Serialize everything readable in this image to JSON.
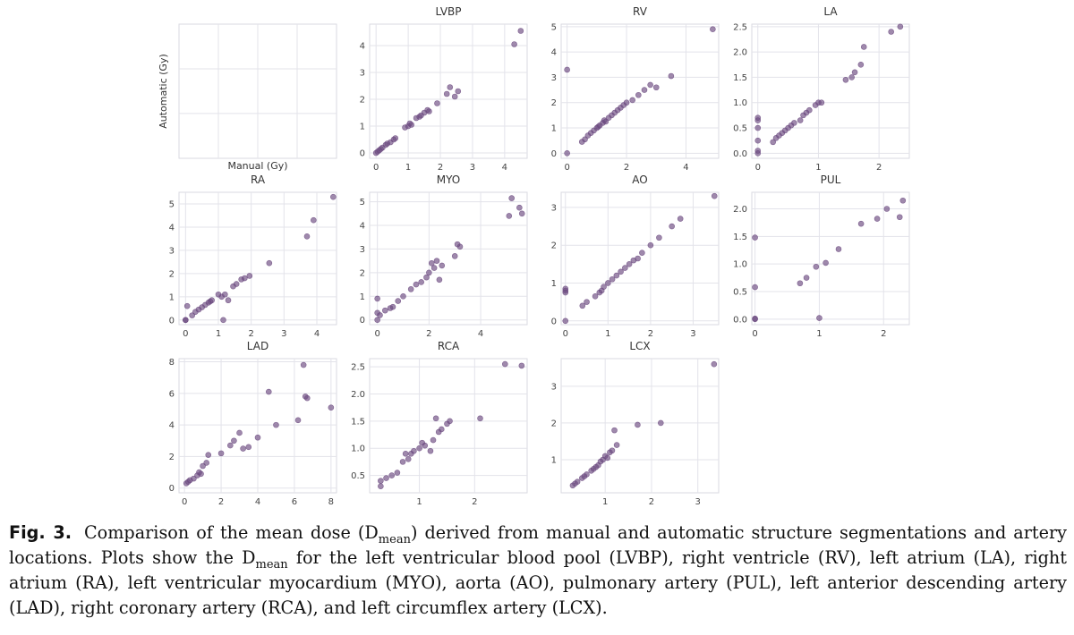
{
  "caption": {
    "label": "Fig. 3.",
    "part1": "Comparison of the mean dose (D",
    "sub1": "mean",
    "part2": ") derived from manual and automatic structure segmentations and artery locations. Plots show the D",
    "sub2": "mean",
    "part3": " for the left ventricular blood pool (LVBP), right ventricle (RV), left atrium (LA), right atrium (RA), left ventricular myocardium (MYO), aorta (AO), pulmonary artery (PUL), left anterior descending artery (LAD), right coronary artery (RCA), and left circumflex artery (LCX)."
  },
  "style": {
    "point_color": "#6b4a80",
    "panel_bg": "#ffffff",
    "grid_color": "#e3e3ea",
    "frame_color": "#d9d9e0"
  },
  "chart_data": [
    {
      "type": "scatter",
      "title": "",
      "xlabel": "Manual (Gy)",
      "ylabel": "Automatic (Gy)",
      "xlim": [
        0,
        1
      ],
      "ylim": [
        0,
        1
      ],
      "xticks": [],
      "yticks": [],
      "x": [],
      "y": []
    },
    {
      "type": "scatter",
      "title": "LVBP",
      "xlabel": "",
      "ylabel": "",
      "xlim": [
        -0.2,
        4.7
      ],
      "ylim": [
        -0.2,
        4.8
      ],
      "xticks": [
        0,
        1,
        2,
        3,
        4
      ],
      "yticks": [
        0,
        1,
        2,
        3,
        4
      ],
      "x": [
        0,
        0.05,
        0.1,
        0.15,
        0.2,
        0.3,
        0.35,
        0.45,
        0.55,
        0.6,
        0.9,
        1.0,
        1.05,
        1.1,
        1.25,
        1.35,
        1.4,
        1.5,
        1.6,
        1.65,
        1.9,
        2.2,
        2.3,
        2.45,
        2.55,
        4.3,
        4.5
      ],
      "y": [
        0,
        0.05,
        0.1,
        0.15,
        0.2,
        0.3,
        0.35,
        0.4,
        0.5,
        0.55,
        0.95,
        1.0,
        1.1,
        1.05,
        1.3,
        1.35,
        1.4,
        1.5,
        1.6,
        1.55,
        1.85,
        2.2,
        2.45,
        2.1,
        2.3,
        4.05,
        4.55
      ]
    },
    {
      "type": "scatter",
      "title": "RV",
      "xlabel": "",
      "ylabel": "",
      "xlim": [
        -0.2,
        5.1
      ],
      "ylim": [
        -0.2,
        5.1
      ],
      "xticks": [
        0,
        2,
        4
      ],
      "yticks": [
        0,
        1,
        2,
        3,
        4,
        5
      ],
      "x": [
        0,
        0,
        0.5,
        0.6,
        0.7,
        0.8,
        0.9,
        1.0,
        1.05,
        1.1,
        1.2,
        1.25,
        1.3,
        1.4,
        1.5,
        1.6,
        1.7,
        1.8,
        1.9,
        2.0,
        2.2,
        2.4,
        2.6,
        2.8,
        3.0,
        3.5,
        4.9
      ],
      "y": [
        0,
        3.3,
        0.45,
        0.55,
        0.7,
        0.8,
        0.9,
        1.0,
        1.05,
        1.1,
        1.2,
        1.3,
        1.25,
        1.4,
        1.5,
        1.6,
        1.7,
        1.8,
        1.9,
        2.0,
        2.1,
        2.3,
        2.5,
        2.7,
        2.6,
        3.05,
        4.9
      ]
    },
    {
      "type": "scatter",
      "title": "LA",
      "xlabel": "",
      "ylabel": "",
      "xlim": [
        -0.1,
        2.5
      ],
      "ylim": [
        -0.1,
        2.55
      ],
      "xticks": [
        0,
        1,
        2
      ],
      "yticks": [
        0.0,
        0.5,
        1.0,
        1.5,
        2.0,
        2.5
      ],
      "x": [
        0,
        0,
        0,
        0,
        0,
        0,
        0.25,
        0.3,
        0.35,
        0.4,
        0.45,
        0.5,
        0.55,
        0.6,
        0.7,
        0.75,
        0.8,
        0.85,
        0.95,
        1.0,
        1.05,
        1.45,
        1.55,
        1.6,
        1.7,
        1.75,
        2.2,
        2.35
      ],
      "y": [
        0,
        0.05,
        0.25,
        0.5,
        0.65,
        0.7,
        0.22,
        0.3,
        0.35,
        0.4,
        0.45,
        0.5,
        0.55,
        0.6,
        0.65,
        0.75,
        0.8,
        0.85,
        0.95,
        1.0,
        1.0,
        1.45,
        1.5,
        1.6,
        1.75,
        2.1,
        2.4,
        2.5
      ]
    },
    {
      "type": "scatter",
      "title": "RA",
      "xlabel": "",
      "ylabel": "",
      "xlim": [
        -0.2,
        4.6
      ],
      "ylim": [
        -0.2,
        5.5
      ],
      "xticks": [
        0,
        1,
        2,
        3,
        4
      ],
      "yticks": [
        0,
        1,
        2,
        3,
        4,
        5
      ],
      "x": [
        0,
        0,
        0.05,
        0.2,
        0.3,
        0.4,
        0.5,
        0.6,
        0.7,
        0.75,
        0.8,
        1.0,
        1.1,
        1.15,
        1.2,
        1.3,
        1.45,
        1.55,
        1.7,
        1.8,
        1.95,
        2.55,
        3.7,
        3.9,
        4.5
      ],
      "y": [
        0,
        0,
        0.6,
        0.2,
        0.35,
        0.45,
        0.55,
        0.65,
        0.75,
        0.8,
        0.85,
        1.1,
        1.0,
        0,
        1.1,
        0.85,
        1.45,
        1.55,
        1.75,
        1.8,
        1.9,
        2.45,
        3.6,
        4.3,
        5.3
      ]
    },
    {
      "type": "scatter",
      "title": "MYO",
      "xlabel": "",
      "ylabel": "",
      "xlim": [
        -0.3,
        5.8
      ],
      "ylim": [
        -0.2,
        5.4
      ],
      "xticks": [
        0,
        2,
        4
      ],
      "yticks": [
        0,
        1,
        2,
        3,
        4,
        5
      ],
      "x": [
        0,
        0,
        0,
        0.1,
        0.3,
        0.5,
        0.6,
        0.8,
        1.0,
        1.3,
        1.5,
        1.7,
        1.9,
        2.0,
        2.1,
        2.2,
        2.3,
        2.4,
        2.5,
        3.0,
        3.1,
        3.2,
        5.1,
        5.2,
        5.5,
        5.6
      ],
      "y": [
        0,
        0.9,
        0.3,
        0.2,
        0.4,
        0.5,
        0.55,
        0.8,
        1.0,
        1.3,
        1.5,
        1.6,
        1.8,
        2.0,
        2.4,
        2.2,
        2.5,
        1.7,
        2.3,
        2.7,
        3.2,
        3.1,
        4.4,
        5.15,
        4.75,
        4.5
      ]
    },
    {
      "type": "scatter",
      "title": "AO",
      "xlabel": "",
      "ylabel": "",
      "xlim": [
        -0.1,
        3.6
      ],
      "ylim": [
        -0.1,
        3.4
      ],
      "xticks": [
        0,
        1,
        2,
        3
      ],
      "yticks": [
        0,
        1,
        2,
        3
      ],
      "x": [
        0,
        0,
        0,
        0,
        0.4,
        0.5,
        0.7,
        0.8,
        0.85,
        0.9,
        1.0,
        1.1,
        1.2,
        1.3,
        1.4,
        1.5,
        1.6,
        1.7,
        1.8,
        2.0,
        2.2,
        2.5,
        2.7,
        3.5
      ],
      "y": [
        0,
        0.75,
        0.8,
        0.85,
        0.4,
        0.5,
        0.65,
        0.75,
        0.8,
        0.9,
        1.0,
        1.1,
        1.2,
        1.3,
        1.4,
        1.5,
        1.6,
        1.65,
        1.8,
        2.0,
        2.2,
        2.5,
        2.7,
        3.3
      ]
    },
    {
      "type": "scatter",
      "title": "PUL",
      "xlabel": "",
      "ylabel": "",
      "xlim": [
        -0.05,
        2.4
      ],
      "ylim": [
        -0.1,
        2.3
      ],
      "xticks": [
        0,
        1,
        2
      ],
      "yticks": [
        0.0,
        0.5,
        1.0,
        1.5,
        2.0
      ],
      "x": [
        0,
        0,
        0,
        0,
        0.7,
        0.8,
        0.95,
        1.0,
        1.1,
        1.3,
        1.65,
        1.9,
        2.05,
        2.25,
        2.3
      ],
      "y": [
        0,
        0.01,
        0.58,
        1.48,
        0.65,
        0.75,
        0.95,
        0.02,
        1.02,
        1.27,
        1.73,
        1.82,
        2.0,
        1.85,
        2.15
      ]
    },
    {
      "type": "scatter",
      "title": "LAD",
      "xlabel": "",
      "ylabel": "",
      "xlim": [
        -0.3,
        8.3
      ],
      "ylim": [
        -0.3,
        8.2
      ],
      "xticks": [
        0,
        2,
        4,
        6,
        8
      ],
      "yticks": [
        0,
        2,
        4,
        6,
        8
      ],
      "x": [
        0.1,
        0.2,
        0.3,
        0.5,
        0.7,
        0.8,
        0.9,
        1.0,
        1.2,
        1.3,
        2.0,
        2.5,
        2.7,
        3.0,
        3.2,
        3.5,
        4.0,
        4.6,
        5.0,
        6.2,
        6.5,
        6.6,
        6.7,
        8.0
      ],
      "y": [
        0.3,
        0.4,
        0.5,
        0.6,
        0.8,
        1.0,
        0.9,
        1.4,
        1.6,
        2.1,
        2.2,
        2.7,
        3.0,
        3.5,
        2.5,
        2.6,
        3.2,
        6.1,
        4.0,
        4.3,
        7.8,
        5.8,
        5.7,
        5.1
      ]
    },
    {
      "type": "scatter",
      "title": "RCA",
      "xlabel": "",
      "ylabel": "",
      "xlim": [
        0.1,
        2.95
      ],
      "ylim": [
        0.18,
        2.65
      ],
      "xticks": [
        1,
        2
      ],
      "yticks": [
        0.5,
        1.0,
        1.5,
        2.0,
        2.5
      ],
      "x": [
        0.3,
        0.3,
        0.4,
        0.5,
        0.6,
        0.7,
        0.75,
        0.8,
        0.85,
        0.9,
        1.0,
        1.05,
        1.1,
        1.2,
        1.25,
        1.3,
        1.35,
        1.4,
        1.5,
        1.55,
        2.1,
        2.55,
        2.85
      ],
      "y": [
        0.3,
        0.4,
        0.45,
        0.5,
        0.55,
        0.75,
        0.9,
        0.8,
        0.9,
        0.95,
        1.0,
        1.1,
        1.05,
        0.95,
        1.15,
        1.55,
        1.3,
        1.35,
        1.45,
        1.5,
        1.55,
        2.55,
        2.52
      ]
    },
    {
      "type": "scatter",
      "title": "LCX",
      "xlabel": "",
      "ylabel": "",
      "xlim": [
        0.05,
        3.45
      ],
      "ylim": [
        0.1,
        3.75
      ],
      "xticks": [
        1,
        2,
        3
      ],
      "yticks": [
        1,
        2,
        3
      ],
      "x": [
        0.3,
        0.35,
        0.4,
        0.5,
        0.55,
        0.6,
        0.7,
        0.75,
        0.8,
        0.85,
        0.9,
        0.95,
        1.0,
        1.05,
        1.1,
        1.15,
        1.2,
        1.25,
        1.7,
        2.2,
        3.35
      ],
      "y": [
        0.3,
        0.35,
        0.4,
        0.5,
        0.55,
        0.6,
        0.7,
        0.75,
        0.8,
        0.85,
        0.95,
        1.0,
        1.1,
        1.05,
        1.2,
        1.25,
        1.8,
        1.4,
        1.95,
        2.0,
        3.6
      ]
    }
  ]
}
